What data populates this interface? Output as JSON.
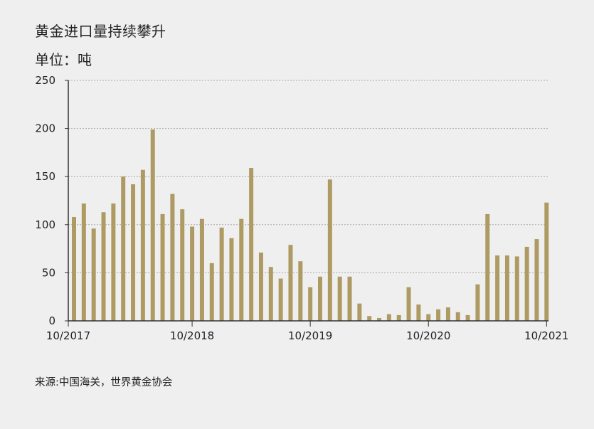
{
  "title": "黄金进口量持续攀升",
  "subtitle": "单位：吨",
  "source": "来源:中国海关，世界黄金协会",
  "colors": {
    "bar": "#ae9b64",
    "axis": "#333333",
    "grid": "#aaaaaa",
    "background": "#f0efef"
  },
  "chart_data": {
    "type": "bar",
    "title": "黄金进口量持续攀升",
    "ylabel": "单位：吨",
    "ylim": [
      0,
      250
    ],
    "yticks": [
      0,
      50,
      100,
      150,
      200,
      250
    ],
    "grid": true,
    "x_tick_labels": [
      {
        "label": "10/2017",
        "index": 0
      },
      {
        "label": "10/2018",
        "index": 12
      },
      {
        "label": "10/2019",
        "index": 24
      },
      {
        "label": "10/2020",
        "index": 36
      },
      {
        "label": "10/2021",
        "index": 48
      }
    ],
    "categories": [
      "2017-10",
      "2017-11",
      "2017-12",
      "2018-01",
      "2018-02",
      "2018-03",
      "2018-04",
      "2018-05",
      "2018-06",
      "2018-07",
      "2018-08",
      "2018-09",
      "2018-10",
      "2018-11",
      "2018-12",
      "2019-01",
      "2019-02",
      "2019-03",
      "2019-04",
      "2019-05",
      "2019-06",
      "2019-07",
      "2019-08",
      "2019-09",
      "2019-10",
      "2019-11",
      "2019-12",
      "2020-01",
      "2020-02",
      "2020-03",
      "2020-04",
      "2020-05",
      "2020-06",
      "2020-07",
      "2020-08",
      "2020-09",
      "2020-10",
      "2020-11",
      "2020-12",
      "2021-01",
      "2021-02",
      "2021-03",
      "2021-04",
      "2021-05",
      "2021-06",
      "2021-07",
      "2021-08",
      "2021-09",
      "2021-10"
    ],
    "values": [
      108,
      122,
      96,
      113,
      122,
      150,
      142,
      157,
      199,
      111,
      132,
      116,
      98,
      106,
      60,
      97,
      86,
      106,
      159,
      71,
      56,
      44,
      79,
      62,
      35,
      46,
      147,
      46,
      46,
      18,
      5,
      3,
      7,
      6,
      35,
      17,
      7,
      12,
      14,
      9,
      6,
      38,
      111,
      68,
      68,
      67,
      77,
      85,
      123
    ]
  }
}
